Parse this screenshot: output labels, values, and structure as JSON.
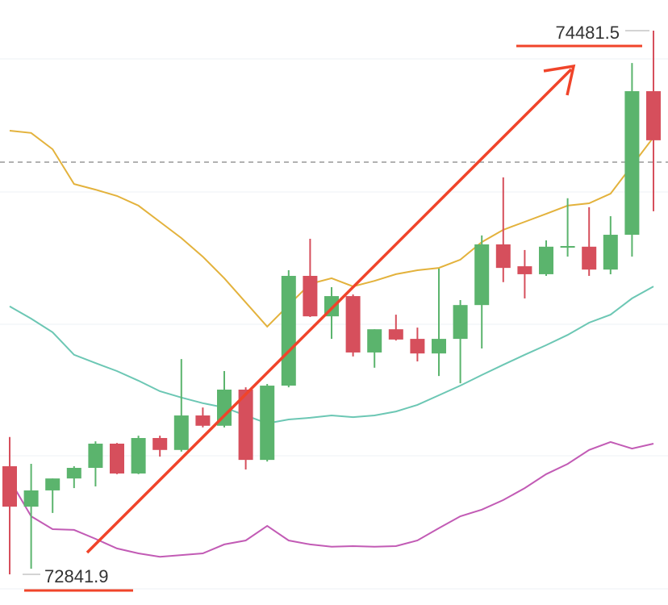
{
  "chart_data": {
    "type": "candlestick",
    "ylim": [
      72749.4,
      74574.0
    ],
    "up_color": "#5bb46d",
    "down_color": "#d64f5c",
    "open": [
      73168,
      73046,
      73095,
      73131,
      73163,
      73236,
      73146,
      73253,
      73217,
      73321,
      73290,
      73399,
      73187,
      73411,
      73742,
      73620,
      73681,
      73511,
      73581,
      73552,
      73508,
      73552,
      73654,
      73837,
      73771,
      73747,
      73827,
      73830,
      73761,
      73866,
      74299
    ],
    "high": [
      73256,
      73175,
      73131,
      73168,
      73243,
      73238,
      73260,
      73260,
      73491,
      73345,
      73455,
      73406,
      73416,
      73759,
      73854,
      73708,
      73686,
      73581,
      73625,
      73586,
      73764,
      73669,
      73864,
      74039,
      73820,
      73849,
      73976,
      73949,
      73922,
      74384,
      74481.5
    ],
    "low": [
      72841.9,
      72859,
      73027,
      73102,
      73107,
      73144,
      73144,
      73197,
      73212,
      73285,
      73285,
      73158,
      73182,
      73406,
      73618,
      73552,
      73499,
      73465,
      73547,
      73484,
      73440,
      73418,
      73523,
      73723,
      73674,
      73742,
      73800,
      73742,
      73747,
      73800,
      73937
    ],
    "close": [
      73046,
      73095,
      73131,
      73163,
      73236,
      73146,
      73253,
      73217,
      73321,
      73290,
      73399,
      73187,
      73411,
      73742,
      73620,
      73681,
      73511,
      73581,
      73550,
      73508,
      73552,
      73654,
      73837,
      73766,
      73747,
      73830,
      73832,
      73761,
      73866,
      74299,
      74151
    ],
    "series": [
      {
        "color": "#e3b23c",
        "values": [
          74180,
          74173,
          74124,
          74019,
          74002,
          73983,
          73954,
          73905,
          73856,
          73800,
          73735,
          73662,
          73589,
          73654,
          73718,
          73735,
          73710,
          73727,
          73747,
          73759,
          73766,
          73791,
          73844,
          73881,
          73905,
          73929,
          73954,
          73961,
          73990,
          74075,
          74160
        ]
      },
      {
        "color": "#6cc7b4",
        "values": [
          73650,
          73613,
          73572,
          73504,
          73479,
          73455,
          73426,
          73394,
          73375,
          73358,
          73345,
          73321,
          73297,
          73309,
          73314,
          73321,
          73316,
          73321,
          73333,
          73353,
          73382,
          73411,
          73443,
          73474,
          73504,
          73533,
          73564,
          73601,
          73625,
          73674,
          73710
        ]
      },
      {
        "color": "#c25bb5",
        "values": [
          73127,
          73017,
          72978,
          72976,
          72949,
          72920,
          72905,
          72895,
          72900,
          72905,
          72932,
          72944,
          72988,
          72944,
          72932,
          72925,
          72927,
          72925,
          72927,
          72944,
          72981,
          73017,
          73037,
          73066,
          73102,
          73144,
          73175,
          73217,
          73241,
          73221,
          73236
        ]
      }
    ],
    "hline": 74085
  }
}
